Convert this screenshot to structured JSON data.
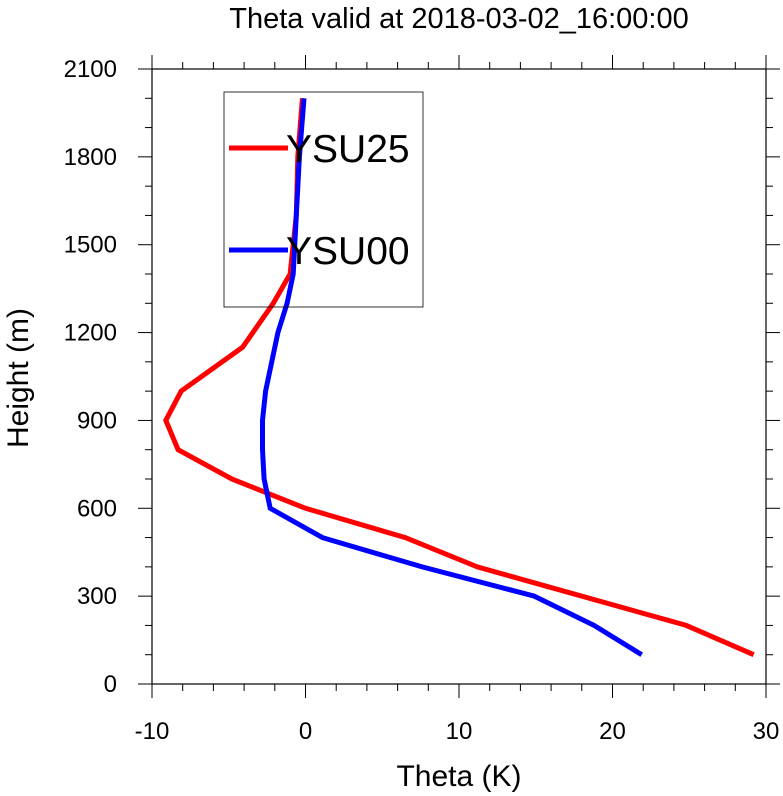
{
  "chart_data": {
    "type": "line",
    "title": "Theta valid at 2018-03-02_16:00:00",
    "xlabel": "Theta (K)",
    "ylabel": "Height (m)",
    "xlim": [
      -10,
      30
    ],
    "ylim": [
      0,
      2100
    ],
    "xticks": [
      -10,
      0,
      10,
      20,
      30
    ],
    "xtick_labels": [
      "-10",
      "0",
      "10",
      "20",
      "30"
    ],
    "xminor_step": 2,
    "yticks": [
      0,
      300,
      600,
      900,
      1200,
      1500,
      1800,
      2100
    ],
    "ytick_labels": [
      "0",
      "300",
      "600",
      "900",
      "1200",
      "1500",
      "1800",
      "2100"
    ],
    "yminor_step": 100,
    "grid": false,
    "legend": {
      "placement": "upper-left",
      "entries": [
        {
          "name": "YSU25",
          "color": "#ff0000"
        },
        {
          "name": "YSU00",
          "color": "#0000ff"
        }
      ]
    },
    "series": [
      {
        "name": "YSU25",
        "color": "#ff0000",
        "x": [
          29.2,
          24.8,
          11.2,
          6.5,
          0.0,
          -4.8,
          -8.3,
          -9.1,
          -8.1,
          -4.1,
          -2.1,
          -1.0,
          -0.6,
          -0.5,
          -0.2
        ],
        "y": [
          100,
          200,
          400,
          500,
          600,
          700,
          800,
          900,
          1000,
          1150,
          1300,
          1400,
          1600,
          1800,
          2000
        ]
      },
      {
        "name": "YSU00",
        "color": "#0000ff",
        "x": [
          21.9,
          18.8,
          14.9,
          7.6,
          1.1,
          -2.3,
          -2.7,
          -2.8,
          -2.8,
          -2.6,
          -1.8,
          -1.2,
          -0.8,
          -0.6,
          -0.4,
          -0.1
        ],
        "y": [
          100,
          200,
          300,
          400,
          500,
          600,
          700,
          800,
          900,
          1000,
          1200,
          1300,
          1400,
          1600,
          1800,
          2000
        ]
      }
    ]
  }
}
